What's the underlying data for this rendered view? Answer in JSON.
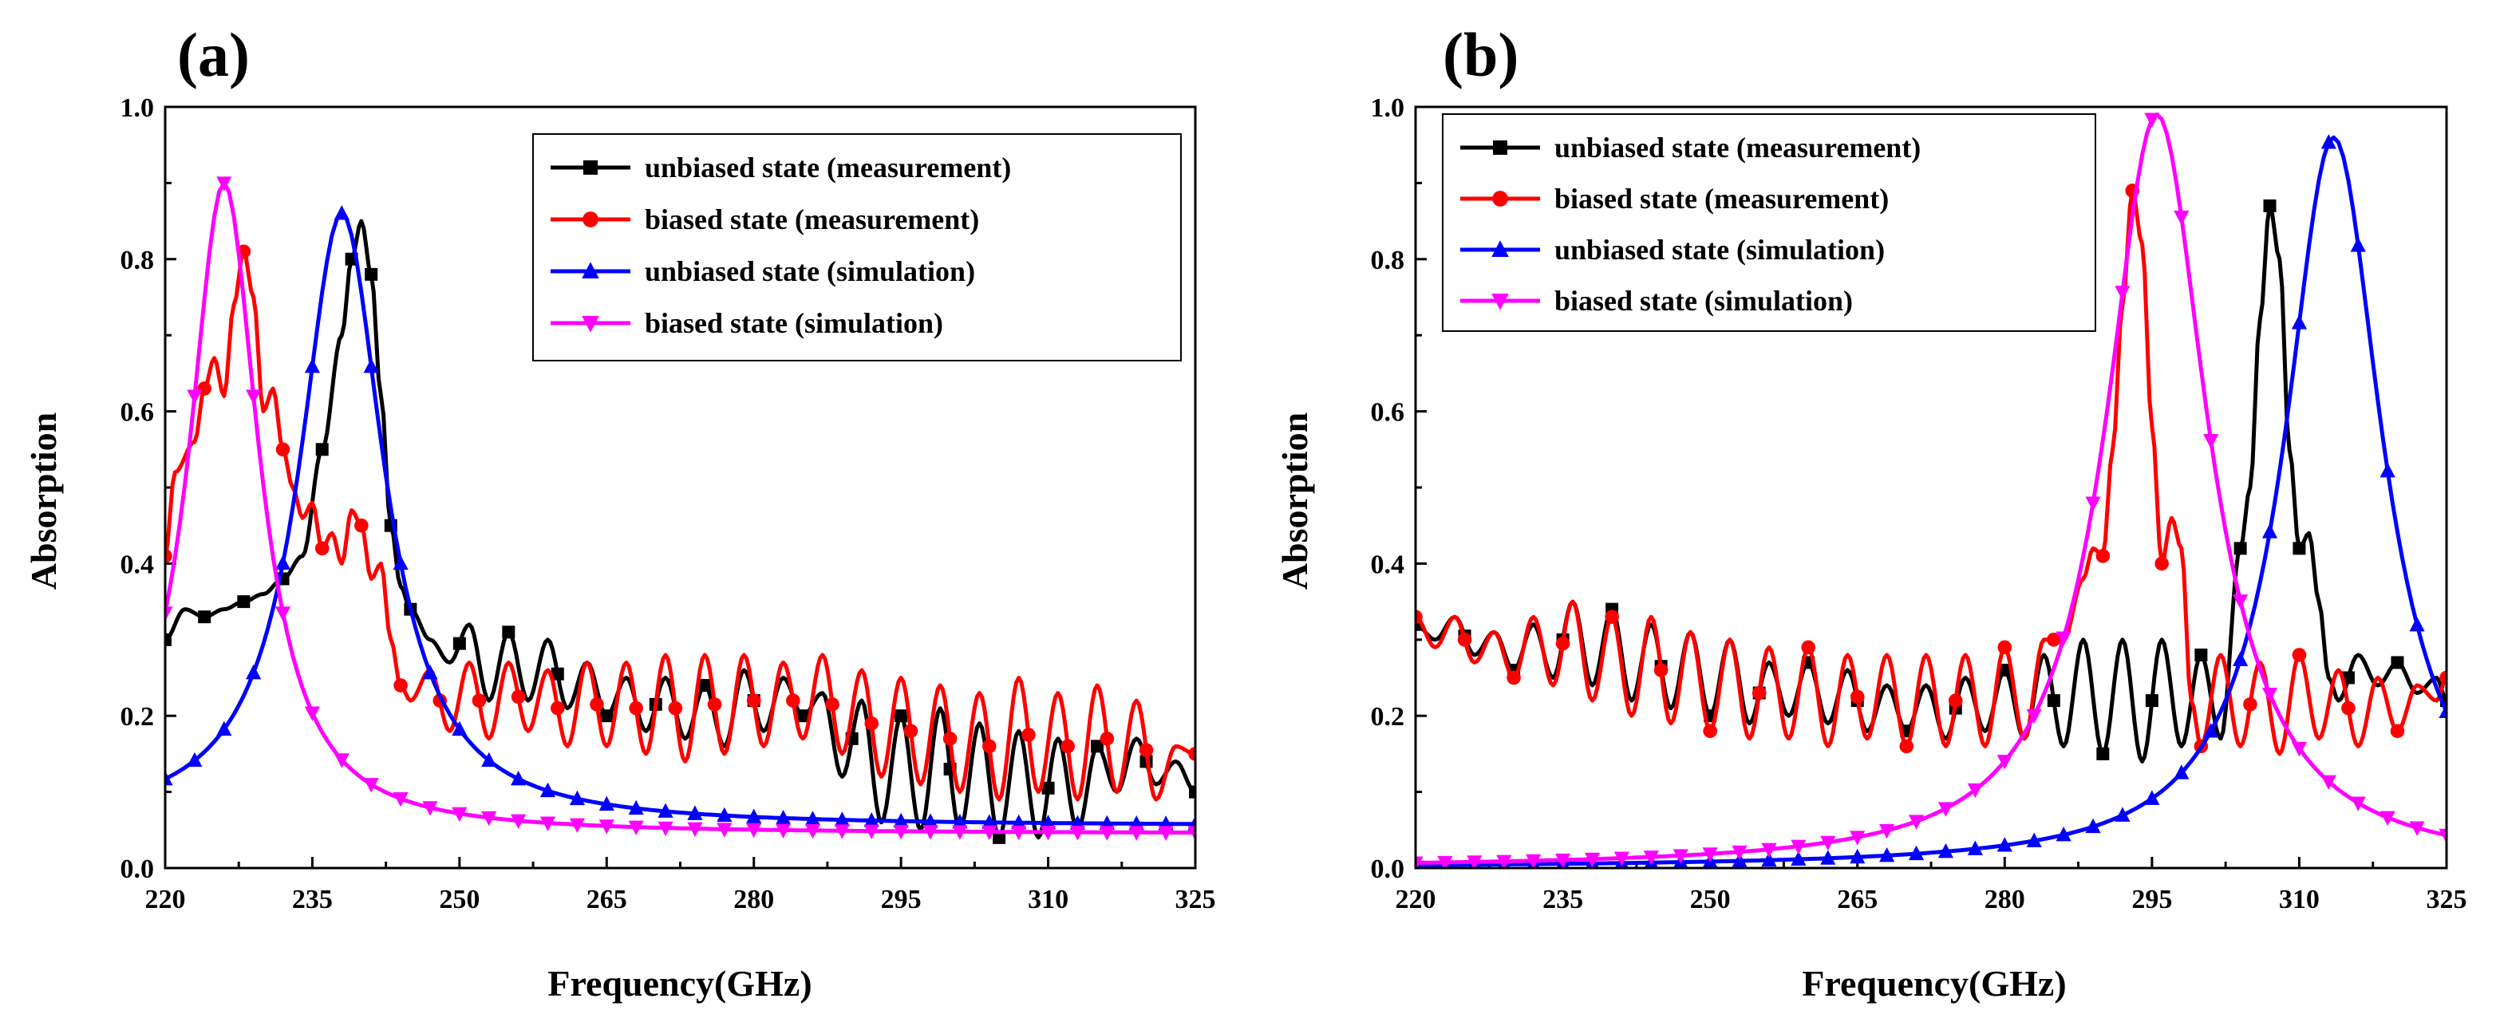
{
  "chart_data": [
    {
      "panel": "(a)",
      "type": "line",
      "xlabel": "Frequency(GHz)",
      "ylabel": "Absorption",
      "xlim": [
        220,
        325
      ],
      "ylim": [
        0,
        1
      ],
      "xticks": [
        220,
        235,
        250,
        265,
        280,
        295,
        310,
        325
      ],
      "yticks": [
        0.0,
        0.2,
        0.4,
        0.6,
        0.8,
        1.0
      ],
      "grid": false,
      "legend_position": "top-right",
      "series": [
        {
          "name": "unbiased state (measurement)",
          "color": "#000000",
          "marker": "square",
          "x": [
            220,
            222,
            224,
            226,
            228,
            230,
            232,
            234,
            236,
            238,
            239,
            240,
            241,
            242,
            243,
            244,
            245,
            247,
            249,
            251,
            253,
            255,
            257,
            259,
            261,
            263,
            265,
            267,
            269,
            271,
            273,
            275,
            277,
            279,
            281,
            283,
            285,
            287,
            289,
            291,
            293,
            295,
            297,
            299,
            301,
            303,
            305,
            307,
            309,
            311,
            313,
            315,
            317,
            319,
            321,
            323,
            325
          ],
          "y": [
            0.3,
            0.34,
            0.33,
            0.34,
            0.35,
            0.36,
            0.38,
            0.41,
            0.55,
            0.7,
            0.8,
            0.85,
            0.78,
            0.62,
            0.45,
            0.37,
            0.34,
            0.3,
            0.27,
            0.32,
            0.22,
            0.31,
            0.22,
            0.3,
            0.21,
            0.27,
            0.2,
            0.25,
            0.18,
            0.25,
            0.17,
            0.24,
            0.16,
            0.26,
            0.18,
            0.25,
            0.2,
            0.23,
            0.12,
            0.22,
            0.06,
            0.2,
            0.05,
            0.21,
            0.05,
            0.19,
            0.04,
            0.18,
            0.04,
            0.17,
            0.05,
            0.16,
            0.1,
            0.17,
            0.11,
            0.14,
            0.1
          ],
          "marker_x": [
            220,
            224,
            228,
            232,
            236,
            239,
            241,
            243,
            245,
            250,
            255,
            260,
            265,
            270,
            275,
            280,
            285,
            290,
            295,
            300,
            305,
            310,
            315,
            320,
            325
          ]
        },
        {
          "name": "biased state (measurement)",
          "color": "#ff0000",
          "marker": "circle",
          "x": [
            220,
            221,
            223,
            224,
            225,
            226,
            227,
            228,
            229,
            230,
            231,
            232,
            233,
            234,
            235,
            236,
            237,
            238,
            239,
            240,
            241,
            242,
            243,
            244,
            245,
            247,
            249,
            251,
            253,
            255,
            257,
            259,
            261,
            263,
            265,
            267,
            269,
            271,
            273,
            275,
            277,
            279,
            281,
            283,
            285,
            287,
            289,
            291,
            293,
            295,
            297,
            299,
            301,
            303,
            305,
            307,
            309,
            311,
            313,
            315,
            317,
            319,
            321,
            323,
            325
          ],
          "y": [
            0.41,
            0.52,
            0.56,
            0.63,
            0.67,
            0.62,
            0.74,
            0.81,
            0.75,
            0.6,
            0.63,
            0.55,
            0.5,
            0.46,
            0.48,
            0.42,
            0.44,
            0.4,
            0.47,
            0.45,
            0.38,
            0.4,
            0.3,
            0.24,
            0.22,
            0.26,
            0.18,
            0.27,
            0.17,
            0.27,
            0.18,
            0.26,
            0.16,
            0.27,
            0.16,
            0.27,
            0.15,
            0.28,
            0.14,
            0.28,
            0.15,
            0.28,
            0.16,
            0.27,
            0.17,
            0.28,
            0.15,
            0.26,
            0.12,
            0.25,
            0.11,
            0.24,
            0.1,
            0.23,
            0.09,
            0.25,
            0.1,
            0.23,
            0.09,
            0.24,
            0.1,
            0.22,
            0.09,
            0.16,
            0.15
          ],
          "marker_x": [
            220,
            224,
            228,
            232,
            236,
            240,
            244,
            248,
            252,
            256,
            260,
            264,
            268,
            272,
            276,
            280,
            284,
            288,
            292,
            296,
            300,
            304,
            308,
            312,
            316,
            320,
            325
          ]
        },
        {
          "name": "unbiased state (simulation)",
          "color": "#0000ff",
          "marker": "triangle-up",
          "peak": {
            "x0": 238,
            "height": 0.86,
            "hwhm": 5.2,
            "baseline": 0.055
          },
          "marker_x": [
            220,
            223,
            226,
            229,
            232,
            235,
            238,
            241,
            244,
            247,
            250,
            253,
            256,
            259,
            262,
            265,
            268,
            271,
            274,
            277,
            280,
            283,
            286,
            289,
            292,
            295,
            298,
            301,
            304,
            307,
            310,
            313,
            316,
            319,
            322,
            325
          ]
        },
        {
          "name": "biased state (simulation)",
          "color": "#ff00ff",
          "marker": "triangle-down",
          "peak": {
            "x0": 226,
            "height": 0.9,
            "hwhm": 4.3,
            "baseline": 0.045
          },
          "marker_x": [
            220,
            223,
            226,
            229,
            232,
            235,
            238,
            241,
            244,
            247,
            250,
            253,
            256,
            259,
            262,
            265,
            268,
            271,
            274,
            277,
            280,
            283,
            286,
            289,
            292,
            295,
            298,
            301,
            304,
            307,
            310,
            313,
            316,
            319,
            322,
            325
          ]
        }
      ]
    },
    {
      "panel": "(b)",
      "type": "line",
      "xlabel": "Frequency(GHz)",
      "ylabel": "Absorption",
      "xlim": [
        220,
        325
      ],
      "ylim": [
        0,
        1
      ],
      "xticks": [
        220,
        235,
        250,
        265,
        280,
        295,
        310,
        325
      ],
      "yticks": [
        0.0,
        0.2,
        0.4,
        0.6,
        0.8,
        1.0
      ],
      "grid": false,
      "legend_position": "top-left",
      "series": [
        {
          "name": "unbiased state (measurement)",
          "color": "#000000",
          "marker": "square",
          "x": [
            220,
            222,
            224,
            226,
            228,
            230,
            232,
            234,
            236,
            238,
            240,
            242,
            244,
            246,
            248,
            250,
            252,
            254,
            256,
            258,
            260,
            262,
            264,
            266,
            268,
            270,
            272,
            274,
            276,
            278,
            280,
            282,
            284,
            286,
            288,
            290,
            292,
            294,
            296,
            298,
            300,
            302,
            304,
            305,
            306,
            307,
            308,
            309,
            310,
            311,
            312,
            313,
            314,
            316,
            318,
            320,
            322,
            324,
            325
          ],
          "y": [
            0.32,
            0.3,
            0.33,
            0.28,
            0.31,
            0.26,
            0.32,
            0.25,
            0.35,
            0.24,
            0.34,
            0.22,
            0.32,
            0.21,
            0.31,
            0.2,
            0.3,
            0.19,
            0.27,
            0.2,
            0.27,
            0.19,
            0.26,
            0.18,
            0.24,
            0.18,
            0.24,
            0.17,
            0.25,
            0.18,
            0.26,
            0.17,
            0.28,
            0.16,
            0.3,
            0.15,
            0.3,
            0.14,
            0.3,
            0.16,
            0.28,
            0.17,
            0.42,
            0.5,
            0.72,
            0.87,
            0.8,
            0.55,
            0.42,
            0.44,
            0.35,
            0.25,
            0.22,
            0.28,
            0.24,
            0.27,
            0.23,
            0.25,
            0.22
          ],
          "marker_x": [
            220,
            225,
            230,
            235,
            240,
            245,
            250,
            255,
            260,
            265,
            270,
            275,
            280,
            285,
            290,
            295,
            300,
            304,
            307,
            310,
            315,
            320,
            325
          ]
        },
        {
          "name": "biased state (measurement)",
          "color": "#ff0000",
          "marker": "circle",
          "x": [
            220,
            222,
            224,
            226,
            228,
            230,
            232,
            234,
            236,
            238,
            240,
            242,
            244,
            246,
            248,
            250,
            252,
            254,
            256,
            258,
            260,
            262,
            264,
            266,
            268,
            270,
            272,
            274,
            276,
            278,
            280,
            282,
            284,
            286,
            288,
            289,
            290,
            291,
            292,
            293,
            294,
            295,
            296,
            297,
            298,
            299,
            300,
            302,
            304,
            306,
            308,
            310,
            312,
            314,
            316,
            318,
            320,
            322,
            324,
            325
          ],
          "y": [
            0.33,
            0.29,
            0.33,
            0.27,
            0.31,
            0.25,
            0.33,
            0.24,
            0.35,
            0.22,
            0.33,
            0.2,
            0.33,
            0.19,
            0.31,
            0.18,
            0.3,
            0.17,
            0.29,
            0.17,
            0.29,
            0.16,
            0.28,
            0.17,
            0.28,
            0.16,
            0.28,
            0.16,
            0.28,
            0.16,
            0.29,
            0.17,
            0.3,
            0.3,
            0.38,
            0.42,
            0.41,
            0.55,
            0.74,
            0.89,
            0.82,
            0.58,
            0.4,
            0.46,
            0.42,
            0.22,
            0.16,
            0.28,
            0.16,
            0.27,
            0.15,
            0.28,
            0.17,
            0.26,
            0.16,
            0.25,
            0.18,
            0.24,
            0.22,
            0.25
          ],
          "marker_x": [
            220,
            225,
            230,
            235,
            240,
            245,
            250,
            255,
            260,
            265,
            270,
            275,
            280,
            285,
            290,
            293,
            296,
            300,
            305,
            310,
            315,
            320,
            325
          ]
        },
        {
          "name": "unbiased state (simulation)",
          "color": "#0000ff",
          "marker": "triangle-up",
          "peak": {
            "x0": 313.5,
            "height": 0.96,
            "hwhm": 6.0,
            "baseline": 0.0
          },
          "marker_x": [
            220,
            223,
            226,
            229,
            232,
            235,
            238,
            241,
            244,
            247,
            250,
            253,
            256,
            259,
            262,
            265,
            268,
            271,
            274,
            277,
            280,
            283,
            286,
            289,
            292,
            295,
            298,
            301,
            304,
            307,
            310,
            313,
            316,
            319,
            322,
            325
          ]
        },
        {
          "name": "biased state (simulation)",
          "color": "#ff00ff",
          "marker": "triangle-down",
          "peak": {
            "x0": 295.5,
            "height": 0.99,
            "hwhm": 6.3,
            "baseline": 0.0
          },
          "marker_x": [
            220,
            223,
            226,
            229,
            232,
            235,
            238,
            241,
            244,
            247,
            250,
            253,
            256,
            259,
            262,
            265,
            268,
            271,
            274,
            277,
            280,
            283,
            286,
            289,
            292,
            295,
            298,
            301,
            304,
            307,
            310,
            313,
            316,
            319,
            322,
            325
          ]
        }
      ]
    }
  ]
}
